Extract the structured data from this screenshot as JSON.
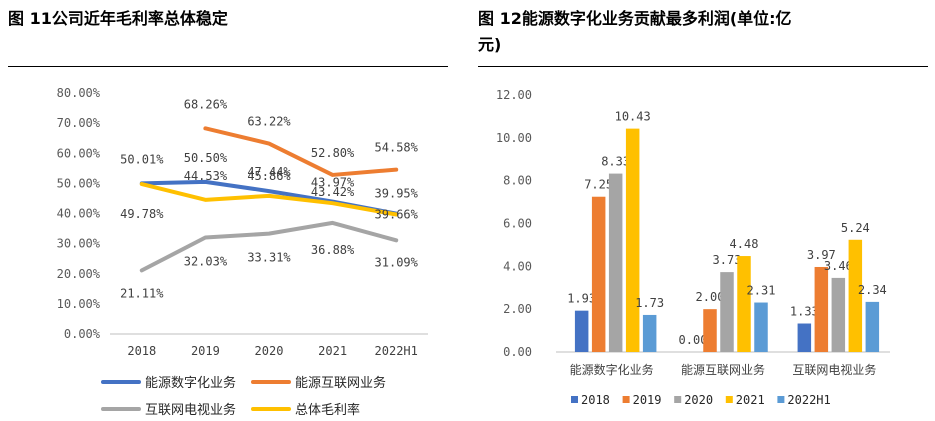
{
  "left_title": "图 11公司近年毛利率总体稳定",
  "right_title_line1": "图 12能源数字化业务贡献最多利润(单位:亿",
  "right_title_line2": "元)",
  "chart_data": [
    {
      "type": "line",
      "title": "图 11公司近年毛利率总体稳定",
      "categories": [
        "2018",
        "2019",
        "2020",
        "2021",
        "2022H1"
      ],
      "ylim": [
        0,
        80
      ],
      "yticks": [
        "0.00%",
        "10.00%",
        "20.00%",
        "30.00%",
        "40.00%",
        "50.00%",
        "60.00%",
        "70.00%",
        "80.00%"
      ],
      "series": [
        {
          "name": "能源数字化业务",
          "color": "#4472C4",
          "values": [
            50.01,
            50.5,
            47.44,
            43.97,
            39.95
          ],
          "labels": [
            "50.01%",
            "50.50%",
            "47.44%",
            "43.97%",
            "39.95%"
          ]
        },
        {
          "name": "能源互联网业务",
          "color": "#ED7D31",
          "values": [
            null,
            68.26,
            63.22,
            52.8,
            54.58
          ],
          "labels": [
            "",
            "68.26%",
            "63.22%",
            "52.80%",
            "54.58%"
          ]
        },
        {
          "name": "互联网电视业务",
          "color": "#A5A5A5",
          "values": [
            21.11,
            32.03,
            33.31,
            36.88,
            31.09
          ],
          "labels": [
            "21.11%",
            "32.03%",
            "33.31%",
            "36.88%",
            "31.09%"
          ]
        },
        {
          "name": "总体毛利率",
          "color": "#FFC000",
          "values": [
            49.78,
            44.53,
            45.86,
            43.42,
            39.66
          ],
          "labels": [
            "49.78%",
            "44.53%",
            "45.86%",
            "43.42%",
            "39.66%"
          ]
        }
      ]
    },
    {
      "type": "bar",
      "title": "图 12能源数字化业务贡献最多利润(单位:亿元)",
      "categories": [
        "能源数字化业务",
        "能源互联网业务",
        "互联网电视业务"
      ],
      "ylim": [
        0,
        12
      ],
      "yticks": [
        "0.00",
        "2.00",
        "4.00",
        "6.00",
        "8.00",
        "10.00",
        "12.00"
      ],
      "series": [
        {
          "name": "2018",
          "color": "#4472C4",
          "values": [
            1.93,
            0.0,
            1.33
          ],
          "labels": [
            "1.93",
            "0.00",
            "1.33"
          ]
        },
        {
          "name": "2019",
          "color": "#ED7D31",
          "values": [
            7.25,
            2.0,
            3.97
          ],
          "labels": [
            "7.25",
            "2.00",
            "3.97"
          ]
        },
        {
          "name": "2020",
          "color": "#A5A5A5",
          "values": [
            8.33,
            3.73,
            3.46
          ],
          "labels": [
            "8.33",
            "3.73",
            "3.46"
          ]
        },
        {
          "name": "2021",
          "color": "#FFC000",
          "values": [
            10.43,
            4.48,
            5.24
          ],
          "labels": [
            "10.43",
            "4.48",
            "5.24"
          ]
        },
        {
          "name": "2022H1",
          "color": "#5B9BD5",
          "values": [
            1.73,
            2.31,
            2.34
          ],
          "labels": [
            "1.73",
            "2.31",
            "2.34"
          ]
        }
      ]
    }
  ]
}
